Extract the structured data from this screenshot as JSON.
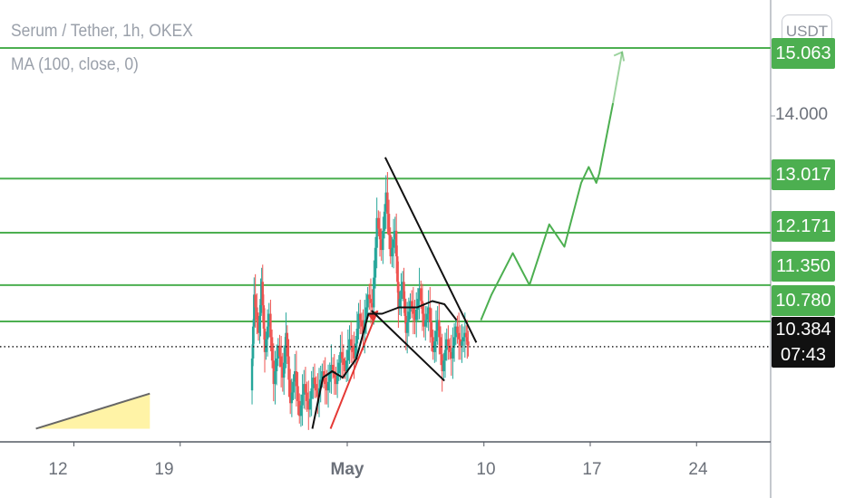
{
  "legend": {
    "title": "Serum / Tether, 1h, OKEX",
    "indicator": "MA (100, close, 0)"
  },
  "currency_chip": "USDT",
  "colors": {
    "level_line": "#4caf50",
    "candle_up": "#26a69a",
    "candle_down": "#ef5350",
    "projection": "#4caf50",
    "ma_line": "#111111",
    "annotation": "#111111",
    "impulse_arrow": "#e53935",
    "current_tag": "#111111",
    "triangle_fill": "#fff3a6"
  },
  "chart_data": {
    "type": "candlestick",
    "title": "Serum / Tether, 1h, OKEX",
    "indicator": "MA (100, close, 0)",
    "ylim": [
      9.1,
      15.5
    ],
    "y_ticks": [
      {
        "value": 14.0,
        "label": "14.000"
      }
    ],
    "x_ticks": [
      {
        "label": "12",
        "day": -18
      },
      {
        "label": "19",
        "day": -11
      },
      {
        "label": "May",
        "day": 0,
        "bold": true
      },
      {
        "label": "10",
        "day": 9
      },
      {
        "label": "17",
        "day": 16
      },
      {
        "label": "24",
        "day": 23
      }
    ],
    "horizontal_levels": [
      {
        "label": "15.063",
        "value": 15.063
      },
      {
        "label": "13.017",
        "value": 13.017
      },
      {
        "label": "12.171",
        "value": 12.171
      },
      {
        "label": "11.350",
        "value": 11.35
      },
      {
        "label": "10.780",
        "value": 10.78
      }
    ],
    "current_price": {
      "label": "10.384",
      "value": 10.384,
      "countdown": "07:43"
    },
    "price_path": [
      [
        -6.3,
        9.7
      ],
      [
        -6.1,
        11.2
      ],
      [
        -5.8,
        10.6
      ],
      [
        -5.6,
        11.4
      ],
      [
        -5.4,
        10.3
      ],
      [
        -5.1,
        10.9
      ],
      [
        -4.8,
        9.8
      ],
      [
        -4.5,
        10.4
      ],
      [
        -4.2,
        9.9
      ],
      [
        -4.0,
        10.6
      ],
      [
        -3.7,
        9.5
      ],
      [
        -3.4,
        10.0
      ],
      [
        -3.1,
        9.3
      ],
      [
        -2.8,
        9.8
      ],
      [
        -2.5,
        9.4
      ],
      [
        -2.2,
        9.9
      ],
      [
        -1.9,
        9.6
      ],
      [
        -1.6,
        10.0
      ],
      [
        -1.3,
        9.7
      ],
      [
        -1.0,
        10.1
      ],
      [
        -0.7,
        9.8
      ],
      [
        -0.4,
        10.3
      ],
      [
        -0.1,
        10.0
      ],
      [
        0.2,
        10.5
      ],
      [
        0.5,
        10.2
      ],
      [
        0.8,
        10.9
      ],
      [
        1.1,
        10.6
      ],
      [
        1.4,
        11.2
      ],
      [
        1.7,
        11.0
      ],
      [
        2.0,
        12.4
      ],
      [
        2.3,
        11.9
      ],
      [
        2.6,
        12.8
      ],
      [
        2.9,
        11.8
      ],
      [
        3.2,
        12.2
      ],
      [
        3.4,
        11.0
      ],
      [
        3.7,
        11.4
      ],
      [
        3.9,
        10.6
      ],
      [
        4.2,
        11.1
      ],
      [
        4.5,
        10.8
      ],
      [
        4.8,
        11.3
      ],
      [
        5.1,
        10.7
      ],
      [
        5.4,
        11.0
      ],
      [
        5.7,
        10.3
      ],
      [
        6.0,
        10.8
      ],
      [
        6.3,
        10.0
      ],
      [
        6.6,
        10.5
      ],
      [
        6.9,
        10.2
      ],
      [
        7.2,
        10.7
      ],
      [
        7.5,
        10.4
      ],
      [
        7.8,
        10.6
      ],
      [
        8.0,
        10.4
      ]
    ],
    "ma_path": [
      [
        -2.3,
        9.1
      ],
      [
        -1.6,
        9.9
      ],
      [
        -1.0,
        10.0
      ],
      [
        -0.3,
        9.9
      ],
      [
        0.6,
        10.2
      ],
      [
        1.4,
        10.9
      ],
      [
        2.3,
        10.9
      ],
      [
        3.4,
        11.0
      ],
      [
        4.6,
        11.0
      ],
      [
        5.6,
        11.1
      ],
      [
        6.4,
        11.05
      ],
      [
        7.2,
        10.8
      ]
    ],
    "projection_path": [
      [
        8.8,
        10.8
      ],
      [
        9.5,
        11.2
      ],
      [
        10.9,
        11.85
      ],
      [
        12.0,
        11.35
      ],
      [
        13.3,
        12.3
      ],
      [
        14.3,
        11.95
      ],
      [
        15.4,
        12.95
      ],
      [
        15.9,
        13.2
      ],
      [
        16.4,
        12.95
      ],
      [
        16.6,
        13.1
      ],
      [
        17.5,
        14.2
      ],
      [
        18.1,
        15.0
      ]
    ],
    "annotation_lines": [
      [
        [
          2.5,
          13.35
        ],
        [
          8.5,
          10.45
        ]
      ],
      [
        [
          1.6,
          10.95
        ],
        [
          6.4,
          9.85
        ]
      ]
    ],
    "impulse_arrow": [
      [
        -1.1,
        9.1
      ],
      [
        2.0,
        10.95
      ]
    ],
    "triangle_marker": [
      [
        -20.5,
        9.1
      ],
      [
        -13.0,
        9.1
      ],
      [
        -13.0,
        9.65
      ]
    ]
  }
}
